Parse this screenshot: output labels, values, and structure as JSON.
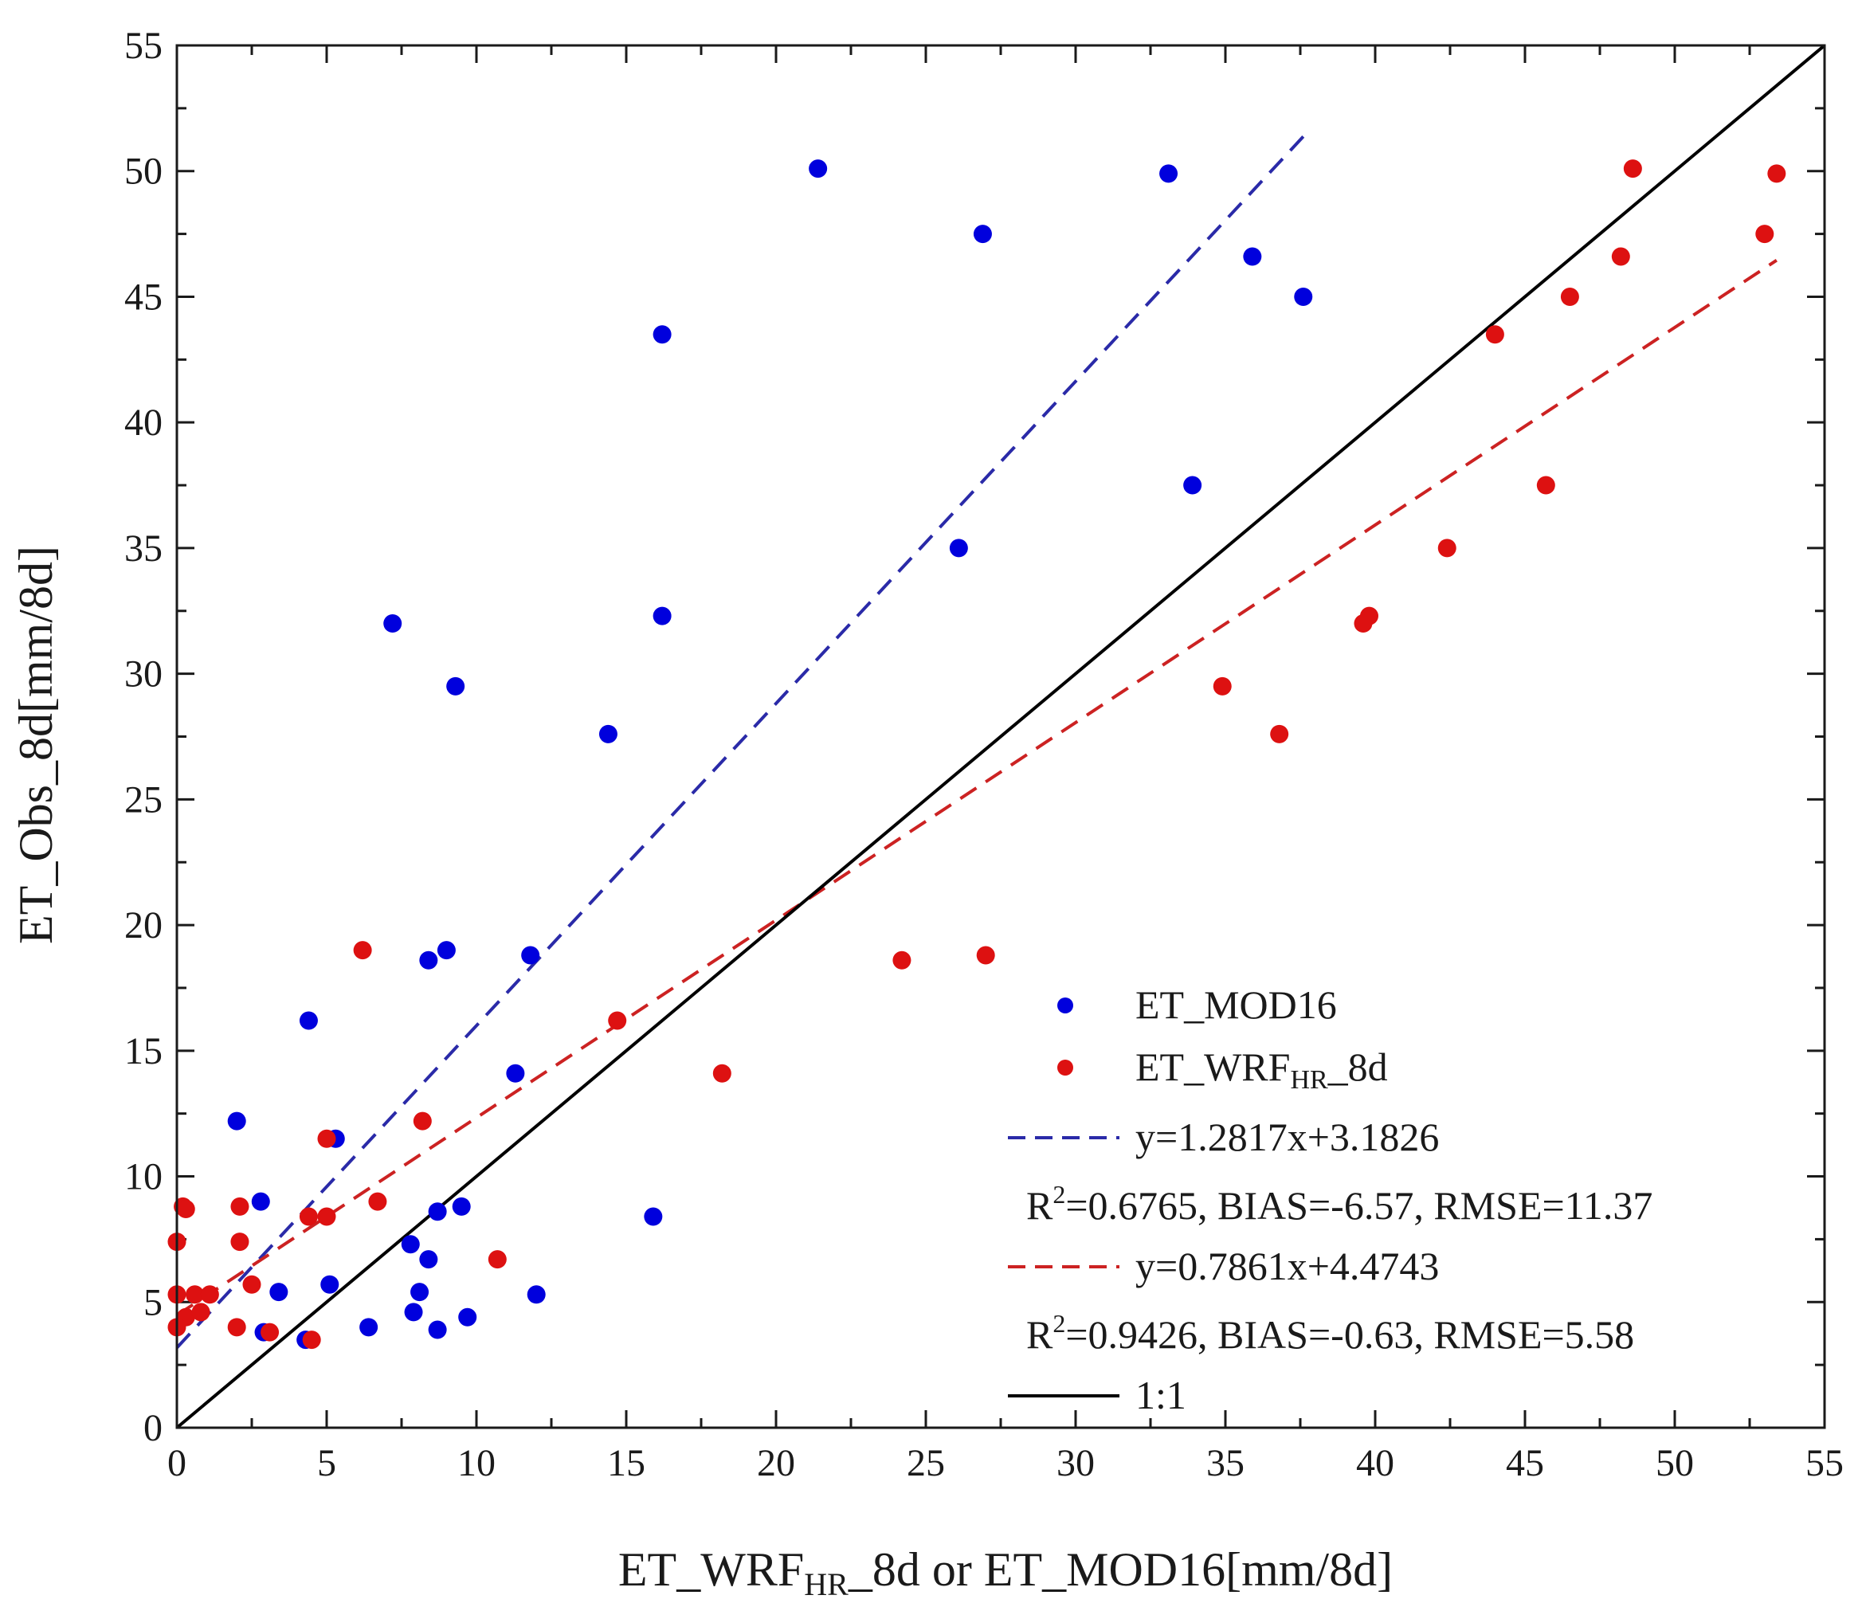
{
  "chart_data": {
    "type": "scatter",
    "title": "",
    "xlabel_parts": {
      "pre": "ET_WRF",
      "sub": "HR",
      "post": "_8d or ET_MOD16[mm/8d]"
    },
    "ylabel": "ET_Obs_8d[mm/8d]",
    "xlim": [
      0,
      55
    ],
    "ylim": [
      0,
      55
    ],
    "xticks": [
      0,
      5,
      10,
      15,
      20,
      25,
      30,
      35,
      40,
      45,
      50,
      55
    ],
    "yticks": [
      0,
      5,
      10,
      15,
      20,
      25,
      30,
      35,
      40,
      45,
      50,
      55
    ],
    "legend_position": "bottom-right",
    "series": [
      {
        "name": "ET_MOD16",
        "color": "#0000dd",
        "points": [
          [
            21.4,
            50.1
          ],
          [
            33.1,
            49.9
          ],
          [
            26.9,
            47.5
          ],
          [
            35.9,
            46.6
          ],
          [
            37.6,
            45.0
          ],
          [
            16.2,
            43.5
          ],
          [
            33.9,
            37.5
          ],
          [
            26.1,
            35.0
          ],
          [
            16.2,
            32.3
          ],
          [
            7.2,
            32.0
          ],
          [
            9.3,
            29.5
          ],
          [
            14.4,
            27.6
          ],
          [
            9.0,
            19.0
          ],
          [
            8.4,
            18.6
          ],
          [
            11.8,
            18.8
          ],
          [
            4.4,
            16.2
          ],
          [
            11.3,
            14.1
          ],
          [
            2.0,
            12.2
          ],
          [
            5.3,
            11.5
          ],
          [
            2.8,
            9.0
          ],
          [
            8.7,
            8.6
          ],
          [
            9.5,
            8.8
          ],
          [
            15.9,
            8.4
          ],
          [
            7.8,
            7.3
          ],
          [
            8.4,
            6.7
          ],
          [
            5.1,
            5.7
          ],
          [
            3.4,
            5.4
          ],
          [
            8.1,
            5.4
          ],
          [
            12.0,
            5.3
          ],
          [
            7.9,
            4.6
          ],
          [
            9.7,
            4.4
          ],
          [
            6.4,
            4.0
          ],
          [
            8.7,
            3.9
          ],
          [
            2.9,
            3.8
          ],
          [
            4.3,
            3.5
          ]
        ]
      },
      {
        "name_parts": {
          "pre": "ET_WRF",
          "sub": "HR",
          "post": "_8d"
        },
        "color": "#dd1111",
        "points": [
          [
            48.6,
            50.1
          ],
          [
            53.4,
            49.9
          ],
          [
            53.0,
            47.5
          ],
          [
            48.2,
            46.6
          ],
          [
            46.5,
            45.0
          ],
          [
            44.0,
            43.5
          ],
          [
            45.7,
            37.5
          ],
          [
            42.4,
            35.0
          ],
          [
            39.8,
            32.3
          ],
          [
            39.6,
            32.0
          ],
          [
            34.9,
            29.5
          ],
          [
            36.8,
            27.6
          ],
          [
            6.2,
            19.0
          ],
          [
            24.2,
            18.6
          ],
          [
            27.0,
            18.8
          ],
          [
            14.7,
            16.2
          ],
          [
            18.2,
            14.1
          ],
          [
            8.2,
            12.2
          ],
          [
            5.0,
            11.5
          ],
          [
            6.7,
            9.0
          ],
          [
            0.2,
            8.8
          ],
          [
            2.1,
            8.8
          ],
          [
            0.3,
            8.7
          ],
          [
            4.4,
            8.4
          ],
          [
            5.0,
            8.4
          ],
          [
            0.0,
            7.4
          ],
          [
            2.1,
            7.4
          ],
          [
            10.7,
            6.7
          ],
          [
            2.5,
            5.7
          ],
          [
            0.0,
            5.3
          ],
          [
            0.6,
            5.3
          ],
          [
            1.1,
            5.3
          ],
          [
            0.3,
            4.4
          ],
          [
            0.8,
            4.6
          ],
          [
            0.0,
            4.0
          ],
          [
            2.0,
            4.0
          ],
          [
            3.1,
            3.8
          ],
          [
            4.5,
            3.5
          ]
        ]
      }
    ],
    "fits": [
      {
        "label": "y=1.2817x+3.1826",
        "slope": 1.2817,
        "intercept": 3.1826,
        "x_range": [
          0,
          37.8
        ],
        "color": "#2a2aa8",
        "style": "dashed"
      },
      {
        "label": "y=0.7861x+4.4743",
        "slope": 0.7861,
        "intercept": 4.4743,
        "x_range": [
          0,
          53.4
        ],
        "color": "#cc2222",
        "style": "dashed"
      },
      {
        "label": "1:1",
        "slope": 1,
        "intercept": 0,
        "x_range": [
          0,
          55
        ],
        "color": "#000000",
        "style": "solid"
      }
    ],
    "stats": [
      {
        "pre": "R",
        "sup": "2",
        "post": "=0.6765, BIAS=-6.57, RMSE=11.37"
      },
      {
        "pre": "R",
        "sup": "2",
        "post": "=0.9426, BIAS=-0.63, RMSE=5.58"
      }
    ]
  }
}
